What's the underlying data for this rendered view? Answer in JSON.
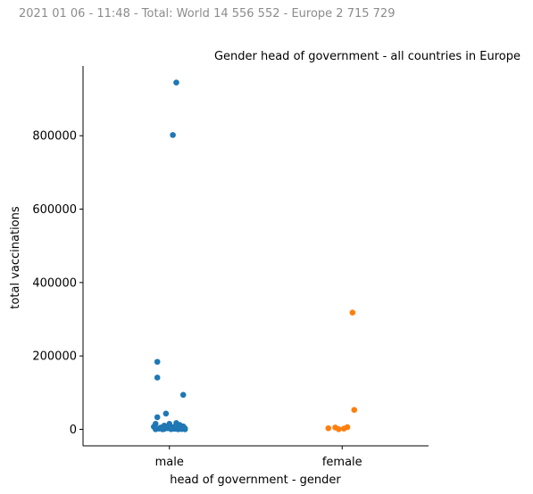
{
  "header": {
    "suptitle": "2021 01 06 - 11:48 - Total: World 14 556 552 - Europe 2 715 729"
  },
  "chart_data": {
    "type": "scatter",
    "subtype": "strip",
    "title": "Gender head of government - all countries in Europe",
    "xlabel": "head of government - gender",
    "ylabel": "total vaccinations",
    "categories": [
      "male",
      "female"
    ],
    "ylim": [
      -45000,
      990000
    ],
    "yticks": [
      0,
      200000,
      400000,
      600000,
      800000
    ],
    "ytick_labels": [
      "0",
      "200000",
      "400000",
      "600000",
      "800000"
    ],
    "grid": false,
    "legend": "none",
    "colors": {
      "male": "#1f77b4",
      "female": "#ff7f0e"
    },
    "series": [
      {
        "category": "male",
        "color": "#1f77b4",
        "points": [
          {
            "jitter": 0.04,
            "value": 945000
          },
          {
            "jitter": 0.02,
            "value": 802000
          },
          {
            "jitter": -0.07,
            "value": 184000
          },
          {
            "jitter": -0.07,
            "value": 141000
          },
          {
            "jitter": 0.08,
            "value": 94000
          },
          {
            "jitter": -0.02,
            "value": 43000
          },
          {
            "jitter": -0.07,
            "value": 33000
          },
          {
            "jitter": 0.04,
            "value": 17000
          },
          {
            "jitter": 0.0,
            "value": 15000
          },
          {
            "jitter": -0.08,
            "value": 15000
          },
          {
            "jitter": 0.06,
            "value": 12000
          },
          {
            "jitter": -0.03,
            "value": 10000
          },
          {
            "jitter": 0.08,
            "value": 8000
          },
          {
            "jitter": -0.09,
            "value": 7000
          },
          {
            "jitter": 0.02,
            "value": 6000
          },
          {
            "jitter": -0.05,
            "value": 5000
          },
          {
            "jitter": 0.05,
            "value": 4000
          },
          {
            "jitter": -0.01,
            "value": 3000
          },
          {
            "jitter": 0.09,
            "value": 2500
          },
          {
            "jitter": -0.06,
            "value": 2000
          },
          {
            "jitter": 0.03,
            "value": 1500
          },
          {
            "jitter": -0.03,
            "value": 1000
          },
          {
            "jitter": 0.07,
            "value": 800
          },
          {
            "jitter": 0.01,
            "value": 500
          },
          {
            "jitter": -0.08,
            "value": 300
          },
          {
            "jitter": 0.05,
            "value": 100
          },
          {
            "jitter": -0.04,
            "value": 0
          },
          {
            "jitter": 0.09,
            "value": 0
          }
        ]
      },
      {
        "category": "female",
        "color": "#ff7f0e",
        "points": [
          {
            "jitter": 0.06,
            "value": 318000
          },
          {
            "jitter": 0.07,
            "value": 53000
          },
          {
            "jitter": 0.03,
            "value": 6000
          },
          {
            "jitter": -0.04,
            "value": 5000
          },
          {
            "jitter": -0.08,
            "value": 3000
          },
          {
            "jitter": 0.01,
            "value": 2000
          },
          {
            "jitter": -0.02,
            "value": 500
          }
        ]
      }
    ]
  }
}
